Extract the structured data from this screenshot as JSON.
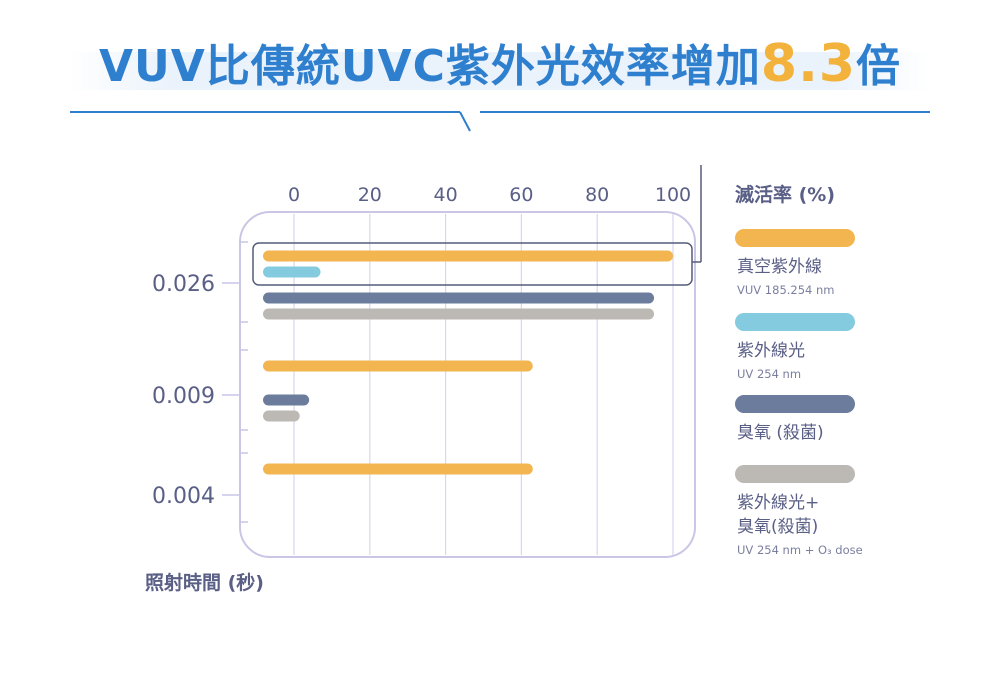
{
  "title": {
    "prefix": "VUV比傳統UVC紫外光效率增加",
    "highlight": "8.3",
    "suffix": "倍"
  },
  "colors": {
    "title": "#2f7fcf",
    "highlight": "#f2b23b",
    "frame": "#c9c6e6",
    "grid": "#d9d6ef",
    "text": "#5a5f86"
  },
  "chart_data": {
    "type": "bar",
    "orientation": "horizontal",
    "x_axis_label": "滅活率 (%)",
    "y_axis_label": "照射時間 (秒)",
    "x_ticks": [
      "0",
      "20",
      "40",
      "60",
      "80",
      "100"
    ],
    "xlim": [
      0,
      100
    ],
    "categories": [
      "0.026",
      "0.009",
      "0.004"
    ],
    "series": [
      {
        "name": "真空紫外線",
        "sub": "VUV 185.254 nm",
        "color": "#f2b550",
        "values": [
          100,
          63,
          63
        ]
      },
      {
        "name": "紫外線光",
        "sub": "UV 254 nm",
        "color": "#84cbe0",
        "values": [
          7,
          null,
          null
        ]
      },
      {
        "name": "臭氧 (殺菌)",
        "sub": "",
        "color": "#6b7c9c",
        "values": [
          95,
          4,
          null
        ]
      },
      {
        "name": "紫外線光+\n臭氧(殺菌)",
        "sub": "UV 254 nm + O₃ dose",
        "color": "#bcb9b4",
        "values": [
          95,
          1.5,
          null
        ]
      }
    ],
    "grid": true,
    "legend_position": "right"
  }
}
